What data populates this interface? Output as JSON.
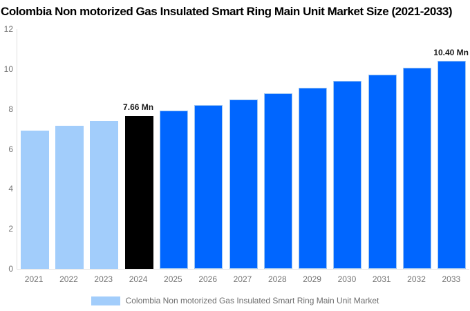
{
  "chart_data": {
    "type": "bar",
    "title": "Colombia Non motorized Gas Insulated Smart Ring Main Unit Market Size (2021-2033)",
    "xlabel": "",
    "ylabel": "",
    "unit": "Mn",
    "categories": [
      "2021",
      "2022",
      "2023",
      "2024",
      "2025",
      "2026",
      "2027",
      "2028",
      "2029",
      "2030",
      "2031",
      "2032",
      "2033"
    ],
    "values": [
      6.92,
      7.16,
      7.4,
      7.66,
      7.92,
      8.2,
      8.48,
      8.77,
      9.07,
      9.39,
      9.71,
      10.05,
      10.4
    ],
    "bar_colors": [
      "#a2cdfb",
      "#a2cdfb",
      "#a2cdfb",
      "#000000",
      "#0066ff",
      "#0066ff",
      "#0066ff",
      "#0066ff",
      "#0066ff",
      "#0066ff",
      "#0066ff",
      "#0066ff",
      "#0066ff"
    ],
    "annotations": [
      {
        "index": 3,
        "text": "7.66 Mn"
      },
      {
        "index": 12,
        "text": "10.40 Mn"
      }
    ],
    "yticks": [
      0,
      2,
      4,
      6,
      8,
      10,
      12
    ],
    "ylim": [
      0,
      12
    ],
    "grid": false,
    "legend_position": "bottom"
  },
  "legend": {
    "label": "Colombia Non motorized Gas Insulated Smart Ring Main Unit Market",
    "swatch_color": "#a2cdfb"
  },
  "colors": {
    "historical_bar": "#a2cdfb",
    "base_year_bar": "#000000",
    "forecast_bar": "#0066ff",
    "forecast_bar_border": "#9ec6f2",
    "axis_line": "#e0e0e0",
    "tick_text": "#757575",
    "annotation_text": "#1a1a1a",
    "title_text": "#000000",
    "background": "#ffffff"
  }
}
